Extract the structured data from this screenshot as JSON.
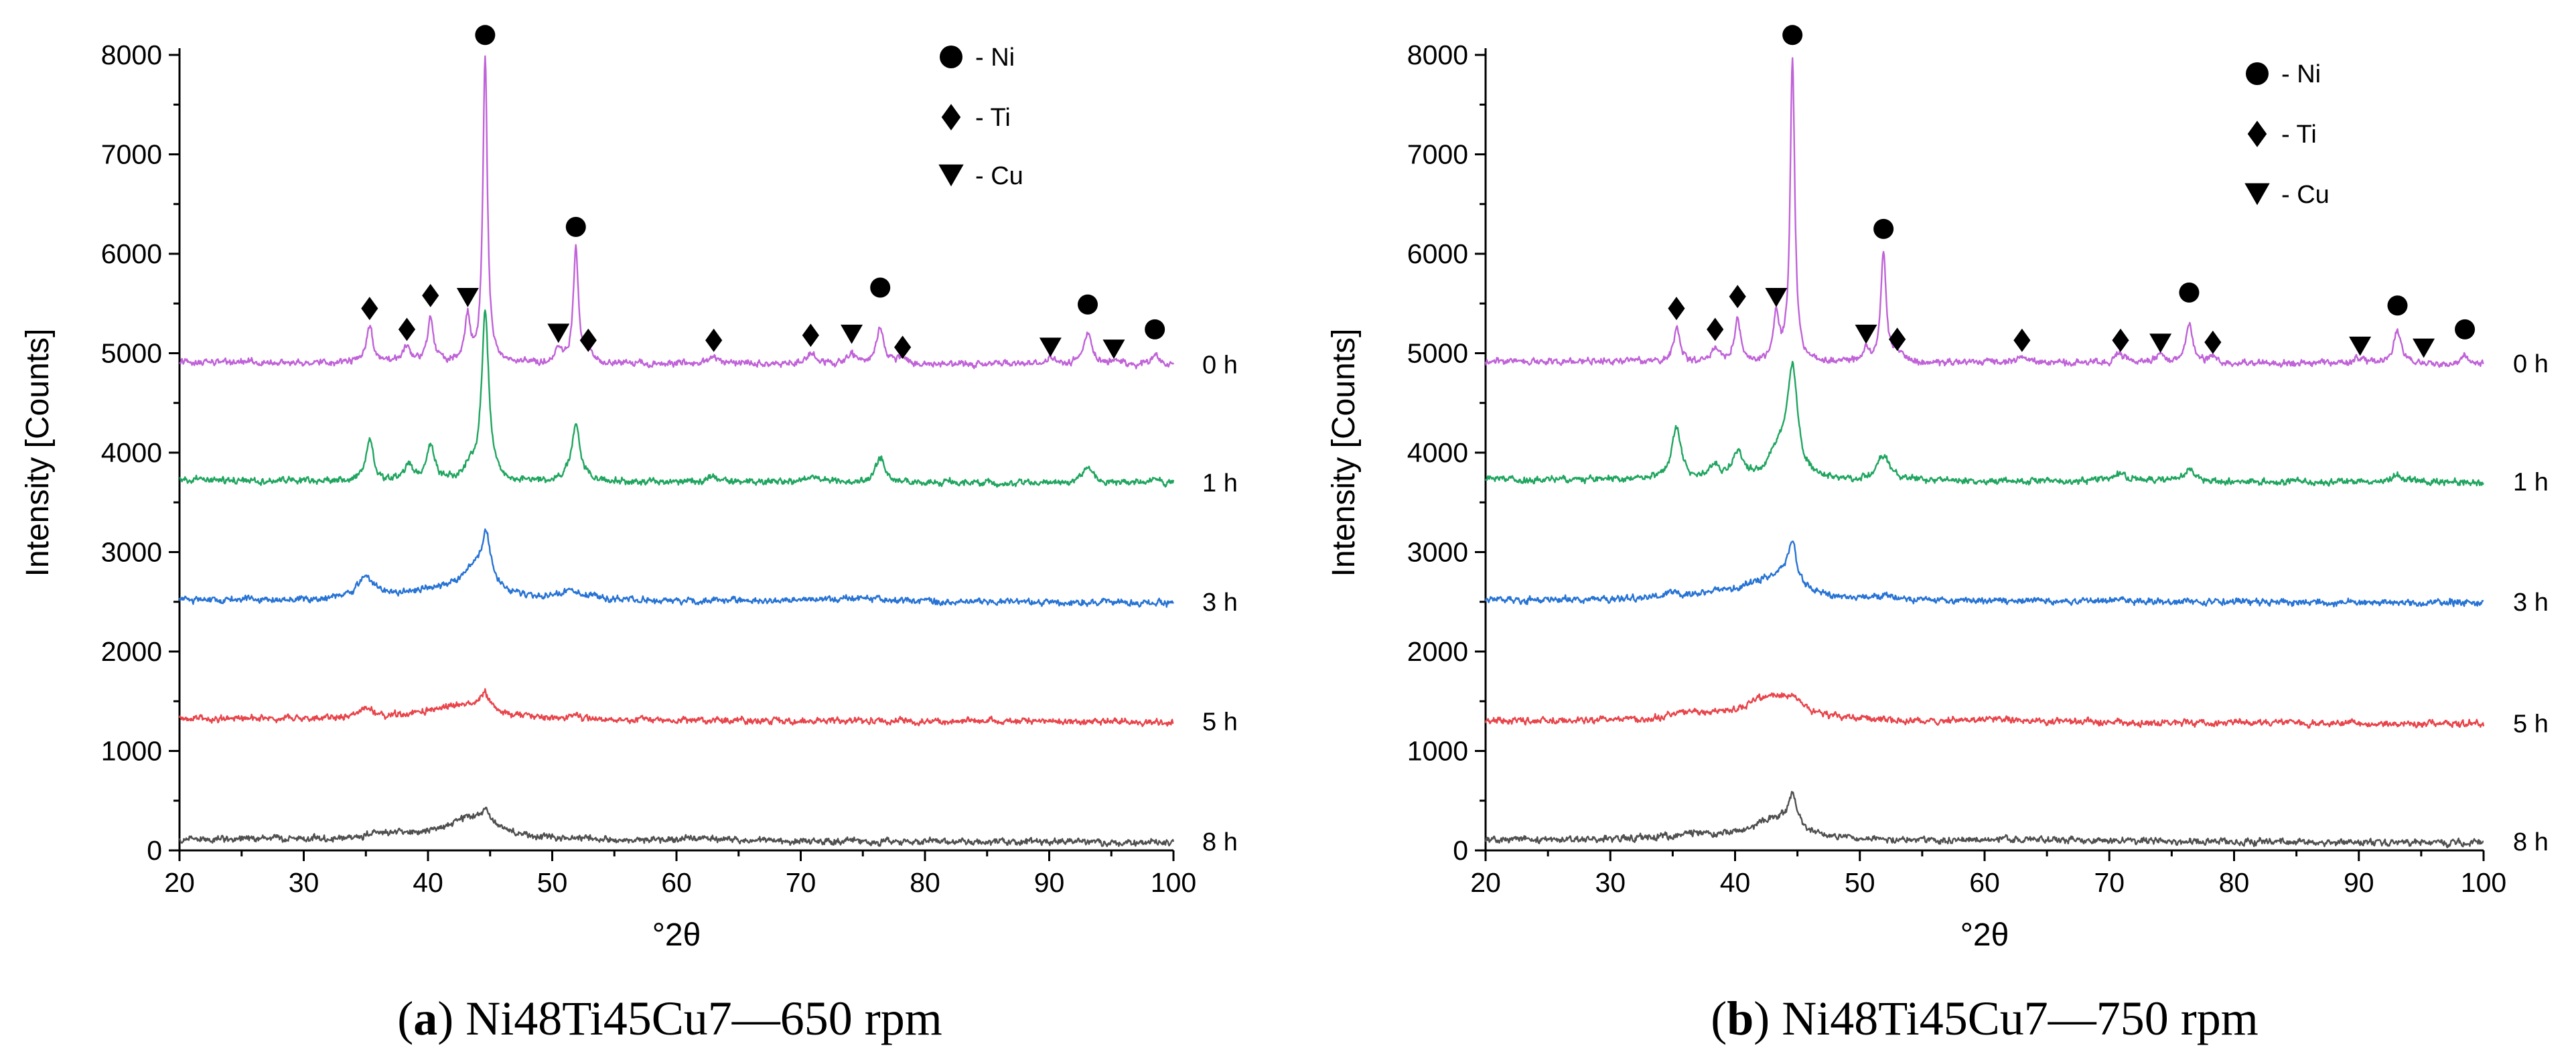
{
  "chart_data": [
    {
      "type": "line",
      "panel": "a",
      "caption_letter": "a",
      "caption_text": "Ni48Ti45Cu7—650 rpm",
      "xlabel": "°2θ",
      "ylabel": "Intensity [Counts]",
      "xlim": [
        20,
        100
      ],
      "ylim": [
        0,
        8000
      ],
      "xticks": [
        20,
        30,
        40,
        50,
        60,
        70,
        80,
        90,
        100
      ],
      "yticks": [
        0,
        1000,
        2000,
        3000,
        4000,
        5000,
        6000,
        7000,
        8000
      ],
      "legend": [
        {
          "symbol": "circle",
          "label": "- Ni"
        },
        {
          "symbol": "diamond",
          "label": "- Ti"
        },
        {
          "symbol": "triangle-down",
          "label": "- Cu"
        }
      ],
      "series": [
        {
          "name": "0 h",
          "color": "#c062d8",
          "baseline": 4880,
          "peaks": [
            [
              35.3,
              380,
              0.3
            ],
            [
              38.3,
              170,
              0.3
            ],
            [
              40.2,
              430,
              0.3
            ],
            [
              43.2,
              460,
              0.25
            ],
            [
              44.6,
              3050,
              0.22
            ],
            [
              50.5,
              140,
              0.3
            ],
            [
              51.9,
              1150,
              0.25
            ],
            [
              52.9,
              120,
              0.3
            ],
            [
              63.0,
              70,
              0.5
            ],
            [
              70.8,
              100,
              0.5
            ],
            [
              74.1,
              90,
              0.4
            ],
            [
              76.4,
              370,
              0.35
            ],
            [
              78.2,
              60,
              0.4
            ],
            [
              90.1,
              60,
              0.4
            ],
            [
              93.1,
              330,
              0.4
            ],
            [
              95.2,
              40,
              0.4
            ],
            [
              98.5,
              100,
              0.35
            ]
          ]
        },
        {
          "name": "1 h",
          "color": "#1fa55f",
          "baseline": 3690,
          "peaks": [
            [
              35.3,
              420,
              0.35
            ],
            [
              38.4,
              160,
              0.35
            ],
            [
              40.2,
              340,
              0.4
            ],
            [
              43.3,
              120,
              0.5
            ],
            [
              44.6,
              1700,
              0.35
            ],
            [
              51.9,
              600,
              0.4
            ],
            [
              63.0,
              40,
              0.6
            ],
            [
              70.8,
              70,
              0.6
            ],
            [
              76.4,
              250,
              0.45
            ],
            [
              93.1,
              170,
              0.5
            ],
            [
              98.5,
              50,
              0.4
            ]
          ]
        },
        {
          "name": "3 h",
          "color": "#2673d4",
          "baseline": 2490,
          "peaks": [
            [
              35.0,
              220,
              0.9
            ],
            [
              40.5,
              80,
              2.5
            ],
            [
              44.0,
              330,
              1.5
            ],
            [
              44.7,
              430,
              0.35
            ],
            [
              51.8,
              90,
              1.2
            ],
            [
              75.0,
              40,
              3.0
            ]
          ]
        },
        {
          "name": "5 h",
          "color": "#e8454b",
          "baseline": 1290,
          "peaks": [
            [
              35.0,
              90,
              0.8
            ],
            [
              42.5,
              150,
              3.2
            ],
            [
              44.6,
              160,
              0.5
            ],
            [
              51.9,
              40,
              0.5
            ],
            [
              76.5,
              20,
              0.6
            ]
          ]
        },
        {
          "name": "8 h",
          "color": "#4f4f4f",
          "baseline": 80,
          "peaks": [
            [
              36.5,
              50,
              2.0
            ],
            [
              43.5,
              230,
              2.5
            ],
            [
              44.6,
              120,
              0.4
            ],
            [
              61.5,
              30,
              2.0
            ]
          ]
        }
      ],
      "markers": [
        {
          "symbol": "circle",
          "x": 44.6,
          "y": 8200
        },
        {
          "symbol": "circle",
          "x": 51.9,
          "y": 6270
        },
        {
          "symbol": "circle",
          "x": 76.4,
          "y": 5660
        },
        {
          "symbol": "circle",
          "x": 93.1,
          "y": 5490
        },
        {
          "symbol": "circle",
          "x": 98.5,
          "y": 5240
        },
        {
          "symbol": "diamond",
          "x": 35.3,
          "y": 5450
        },
        {
          "symbol": "diamond",
          "x": 38.3,
          "y": 5240
        },
        {
          "symbol": "diamond",
          "x": 40.2,
          "y": 5580
        },
        {
          "symbol": "diamond",
          "x": 52.9,
          "y": 5130
        },
        {
          "symbol": "diamond",
          "x": 63.0,
          "y": 5130
        },
        {
          "symbol": "diamond",
          "x": 70.8,
          "y": 5180
        },
        {
          "symbol": "diamond",
          "x": 78.2,
          "y": 5060
        },
        {
          "symbol": "triangle-down",
          "x": 43.2,
          "y": 5560
        },
        {
          "symbol": "triangle-down",
          "x": 50.5,
          "y": 5200
        },
        {
          "symbol": "triangle-down",
          "x": 74.1,
          "y": 5190
        },
        {
          "symbol": "triangle-down",
          "x": 90.1,
          "y": 5060
        },
        {
          "symbol": "triangle-down",
          "x": 95.2,
          "y": 5040
        }
      ]
    },
    {
      "type": "line",
      "panel": "b",
      "caption_letter": "b",
      "caption_text": "Ni48Ti45Cu7—750 rpm",
      "xlabel": "°2θ",
      "ylabel": "Intensity [Counts]",
      "xlim": [
        20,
        100
      ],
      "ylim": [
        0,
        8000
      ],
      "xticks": [
        20,
        30,
        40,
        50,
        60,
        70,
        80,
        90,
        100
      ],
      "yticks": [
        0,
        1000,
        2000,
        3000,
        4000,
        5000,
        6000,
        7000,
        8000
      ],
      "legend": [
        {
          "symbol": "circle",
          "label": "- Ni"
        },
        {
          "symbol": "diamond",
          "label": "- Ti"
        },
        {
          "symbol": "triangle-down",
          "label": "- Cu"
        }
      ],
      "series": [
        {
          "name": "0 h",
          "color": "#c062d8",
          "baseline": 4890,
          "peaks": [
            [
              35.3,
              330,
              0.3
            ],
            [
              38.4,
              140,
              0.3
            ],
            [
              40.2,
              420,
              0.3
            ],
            [
              43.3,
              480,
              0.25
            ],
            [
              44.6,
              3040,
              0.22
            ],
            [
              50.5,
              130,
              0.3
            ],
            [
              51.9,
              1120,
              0.25
            ],
            [
              53.0,
              110,
              0.3
            ],
            [
              63.0,
              60,
              0.5
            ],
            [
              70.9,
              90,
              0.5
            ],
            [
              74.1,
              80,
              0.4
            ],
            [
              76.4,
              400,
              0.35
            ],
            [
              78.3,
              50,
              0.4
            ],
            [
              90.1,
              60,
              0.4
            ],
            [
              93.1,
              320,
              0.4
            ],
            [
              98.5,
              90,
              0.35
            ]
          ]
        },
        {
          "name": "1 h",
          "color": "#1fa55f",
          "baseline": 3700,
          "peaks": [
            [
              35.3,
              530,
              0.45
            ],
            [
              38.4,
              130,
              0.4
            ],
            [
              40.2,
              260,
              0.5
            ],
            [
              43.5,
              250,
              1.0
            ],
            [
              44.6,
              1050,
              0.5
            ],
            [
              51.9,
              250,
              0.6
            ],
            [
              70.9,
              70,
              0.7
            ],
            [
              76.4,
              110,
              0.6
            ],
            [
              93.1,
              70,
              0.6
            ]
          ]
        },
        {
          "name": "3 h",
          "color": "#2673d4",
          "baseline": 2490,
          "peaks": [
            [
              35.0,
              60,
              0.8
            ],
            [
              38.4,
              40,
              0.4
            ],
            [
              42.0,
              150,
              3.0
            ],
            [
              44.0,
              180,
              1.3
            ],
            [
              44.6,
              380,
              0.35
            ],
            [
              52.0,
              30,
              1.0
            ]
          ]
        },
        {
          "name": "5 h",
          "color": "#e8454b",
          "baseline": 1270,
          "peaks": [
            [
              36.5,
              60,
              2.0
            ],
            [
              43.0,
              250,
              2.8
            ],
            [
              44.6,
              90,
              0.5
            ],
            [
              61.0,
              30,
              2.0
            ]
          ]
        },
        {
          "name": "8 h",
          "color": "#4f4f4f",
          "baseline": 80,
          "peaks": [
            [
              36.5,
              50,
              2.0
            ],
            [
              43.3,
              220,
              2.3
            ],
            [
              44.6,
              330,
              0.35
            ],
            [
              61.0,
              25,
              2.0
            ]
          ]
        }
      ],
      "markers": [
        {
          "symbol": "circle",
          "x": 44.6,
          "y": 8200
        },
        {
          "symbol": "circle",
          "x": 51.9,
          "y": 6250
        },
        {
          "symbol": "circle",
          "x": 76.4,
          "y": 5610
        },
        {
          "symbol": "circle",
          "x": 93.1,
          "y": 5480
        },
        {
          "symbol": "circle",
          "x": 98.5,
          "y": 5240
        },
        {
          "symbol": "diamond",
          "x": 35.3,
          "y": 5450
        },
        {
          "symbol": "diamond",
          "x": 38.4,
          "y": 5240
        },
        {
          "symbol": "diamond",
          "x": 40.2,
          "y": 5570
        },
        {
          "symbol": "diamond",
          "x": 53.0,
          "y": 5140
        },
        {
          "symbol": "diamond",
          "x": 63.0,
          "y": 5130
        },
        {
          "symbol": "diamond",
          "x": 70.9,
          "y": 5130
        },
        {
          "symbol": "diamond",
          "x": 78.3,
          "y": 5110
        },
        {
          "symbol": "triangle-down",
          "x": 43.3,
          "y": 5560
        },
        {
          "symbol": "triangle-down",
          "x": 50.5,
          "y": 5190
        },
        {
          "symbol": "triangle-down",
          "x": 74.1,
          "y": 5100
        },
        {
          "symbol": "triangle-down",
          "x": 90.1,
          "y": 5070
        },
        {
          "symbol": "triangle-down",
          "x": 95.2,
          "y": 5050
        }
      ]
    }
  ]
}
